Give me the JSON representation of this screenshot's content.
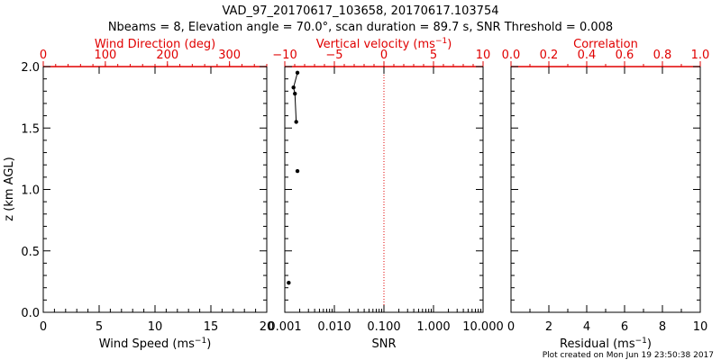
{
  "header": {
    "title": "VAD_97_20170617_103658, 20170617.103754",
    "subtitle": "Nbeams = 8, Elevation angle = 70.0°, scan duration = 89.7 s, SNR Threshold = 0.008"
  },
  "footer": {
    "credit": "Plot created on Mon Jun 19 23:50:38 2017"
  },
  "colors": {
    "axis": "#000000",
    "accent": "#e00000"
  },
  "chart_data": [
    {
      "type": "scatter",
      "ylabel": "z (km AGL)",
      "ylim": [
        0,
        2
      ],
      "yticks": [
        "0.0",
        "0.5",
        "1.0",
        "1.5",
        "2.0"
      ],
      "bottom_axis": {
        "label": "Wind Speed (ms",
        "label_sup": "−1",
        "label_end": ")",
        "range": [
          0,
          20
        ],
        "ticks": [
          "0",
          "5",
          "10",
          "15",
          "20"
        ]
      },
      "top_axis": {
        "label": "Wind Direction (deg)",
        "range": [
          0,
          360
        ],
        "ticks": [
          "0",
          "100",
          "200",
          "300"
        ]
      },
      "series": []
    },
    {
      "type": "line",
      "bottom_axis": {
        "label": "SNR",
        "scale": "log",
        "range": [
          0.001,
          10
        ],
        "ticks": [
          "0.001",
          "0.010",
          "0.100",
          "1.000",
          "10.000"
        ]
      },
      "top_axis": {
        "label": "Vertical velocity (ms",
        "label_sup": "−1",
        "label_end": ")",
        "range": [
          -10,
          10
        ],
        "ticks": [
          "−10",
          "−5",
          "0",
          "5",
          "10"
        ]
      },
      "zero_reference_line": 0,
      "ylim": [
        0,
        2
      ],
      "series": [
        {
          "x": [
            0.0018,
            0.0015,
            0.0016,
            0.0017,
            0.0018,
            0.0012
          ],
          "y": [
            1.95,
            1.83,
            1.78,
            1.55,
            1.15,
            0.24
          ]
        }
      ]
    },
    {
      "type": "scatter",
      "bottom_axis": {
        "label": "Residual (ms",
        "label_sup": "−1",
        "label_end": ")",
        "range": [
          0,
          10
        ],
        "ticks": [
          "0",
          "2",
          "4",
          "6",
          "8",
          "10"
        ]
      },
      "top_axis": {
        "label": "Correlation",
        "range": [
          0,
          1
        ],
        "ticks": [
          "0.0",
          "0.2",
          "0.4",
          "0.6",
          "0.8",
          "1.0"
        ]
      },
      "ylim": [
        0,
        2
      ],
      "series": []
    }
  ]
}
